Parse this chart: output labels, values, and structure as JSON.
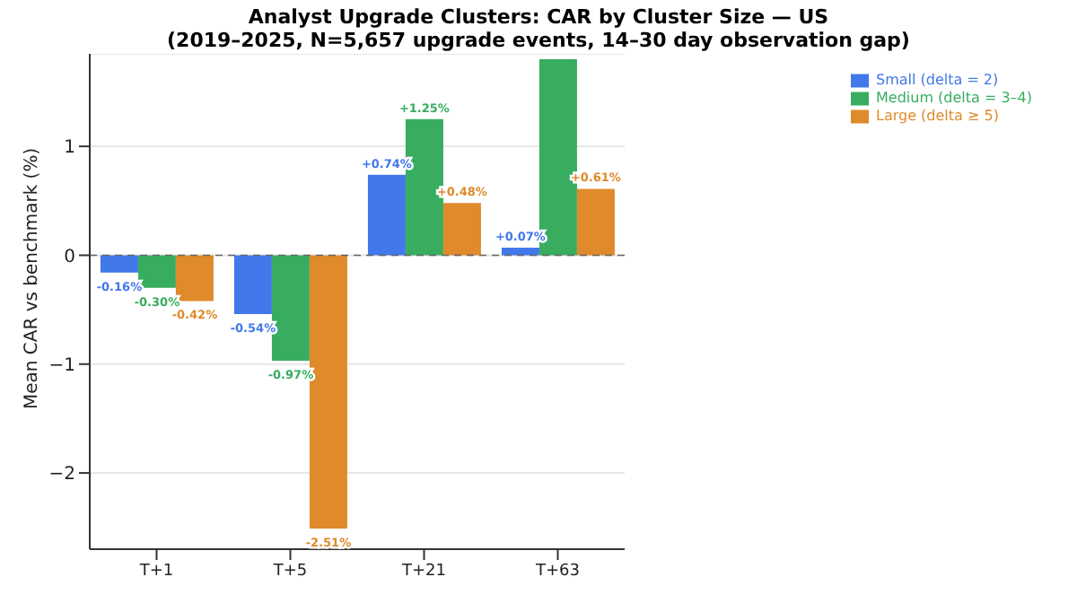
{
  "chart_data": {
    "type": "bar",
    "title": "Analyst Upgrade Clusters: CAR by Cluster Size — US",
    "subtitle": "(2019–2025, N=5,657 upgrade events, 14–30 day observation gap)",
    "ylabel": "Mean CAR vs benchmark (%)",
    "categories": [
      "T+1",
      "T+5",
      "T+21",
      "T+63"
    ],
    "series": [
      {
        "name": "Small (delta = 2)",
        "color": "#4178ea",
        "values": [
          -0.16,
          -0.54,
          0.74,
          0.07
        ],
        "value_labels": [
          "-0.16%",
          "-0.54%",
          "+0.74%",
          "+0.07%"
        ]
      },
      {
        "name": "Medium (delta = 3–4)",
        "color": "#38ad60",
        "values": [
          -0.3,
          -0.97,
          1.25,
          1.8
        ],
        "value_labels": [
          "-0.30%",
          "-0.97%",
          "+1.25%",
          null
        ]
      },
      {
        "name": "Large (delta ≥ 5)",
        "color": "#df8a2b",
        "values": [
          -0.42,
          -2.51,
          0.48,
          0.61
        ],
        "value_labels": [
          "-0.42%",
          "-2.51%",
          "+0.48%",
          "+0.61%"
        ]
      }
    ],
    "ylim": [
      -2.7,
      1.85
    ],
    "yticks": [
      {
        "value": -2,
        "label": "−2"
      },
      {
        "value": -1,
        "label": "−1"
      },
      0,
      1
    ],
    "ref_lines": [
      {
        "axis": "y",
        "value": 0,
        "color": "#666666",
        "line_style": "dashed"
      }
    ],
    "grid": "y",
    "legend": "top right"
  }
}
